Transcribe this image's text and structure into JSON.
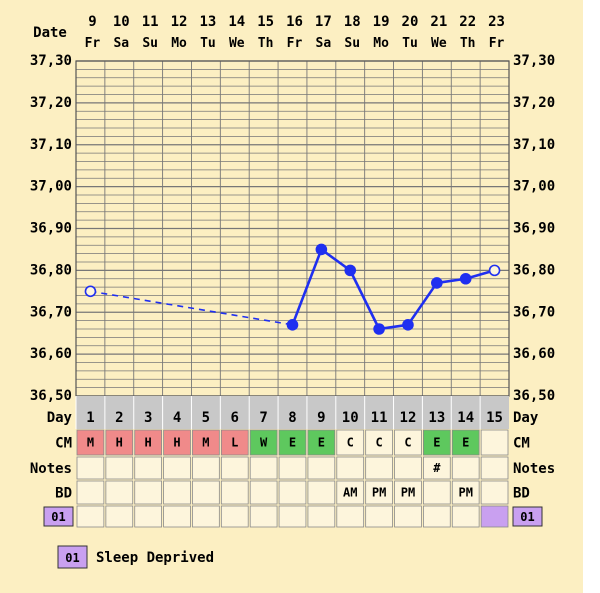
{
  "chart_data": {
    "type": "line",
    "title": "",
    "xlabel": "Date",
    "ylabel": "",
    "ylim": [
      36.5,
      37.3
    ],
    "y_ticks": [
      "37,30",
      "37,20",
      "37,10",
      "37,00",
      "36,90",
      "36,80",
      "36,70",
      "36,60",
      "36,50"
    ],
    "dates": [
      "9",
      "10",
      "11",
      "12",
      "13",
      "14",
      "15",
      "16",
      "17",
      "18",
      "19",
      "20",
      "21",
      "22",
      "23"
    ],
    "weekdays": [
      "Fr",
      "Sa",
      "Su",
      "Mo",
      "Tu",
      "We",
      "Th",
      "Fr",
      "Sa",
      "Su",
      "Mo",
      "Tu",
      "We",
      "Th",
      "Fr"
    ],
    "days": [
      "1",
      "2",
      "3",
      "4",
      "5",
      "6",
      "7",
      "8",
      "9",
      "10",
      "11",
      "12",
      "13",
      "14",
      "15"
    ],
    "series": [
      {
        "values": [
          36.75,
          null,
          null,
          null,
          null,
          null,
          null,
          36.67,
          36.85,
          36.8,
          36.66,
          36.67,
          36.77,
          36.78,
          36.8
        ],
        "open_points": [
          1,
          15
        ],
        "dashed_segment": [
          1,
          8
        ],
        "color": "#1f2ff0"
      }
    ],
    "grid": true
  },
  "labels": {
    "date": "Date",
    "day": "Day",
    "cm": "CM",
    "notes": "Notes",
    "bd": "BD",
    "code": "01"
  },
  "rows": {
    "cm": [
      "M",
      "H",
      "H",
      "H",
      "M",
      "L",
      "W",
      "E",
      "E",
      "C",
      "C",
      "C",
      "E",
      "E",
      ""
    ],
    "cm_colors": [
      "#f08a8a",
      "#f08a8a",
      "#f08a8a",
      "#f08a8a",
      "#f08a8a",
      "#f08a8a",
      "#5ec85e",
      "#5ec85e",
      "#5ec85e",
      "#fdf5dc",
      "#fdf5dc",
      "#fdf5dc",
      "#5ec85e",
      "#5ec85e",
      "#fdf5dc"
    ],
    "notes": [
      "",
      "",
      "",
      "",
      "",
      "",
      "",
      "",
      "",
      "",
      "",
      "",
      "#",
      "",
      ""
    ],
    "bd": [
      "",
      "",
      "",
      "",
      "",
      "",
      "",
      "",
      "",
      "AM",
      "PM",
      "PM",
      "",
      "PM",
      ""
    ],
    "code_filled": [
      15
    ]
  },
  "legend": {
    "code": "01",
    "text": "Sleep Deprived",
    "color": "#c9a0f0"
  },
  "colors": {
    "background": "#fcefc2",
    "grid": "#777777",
    "day_row": "#c8c8c8",
    "cell": "#fdf5dc"
  }
}
